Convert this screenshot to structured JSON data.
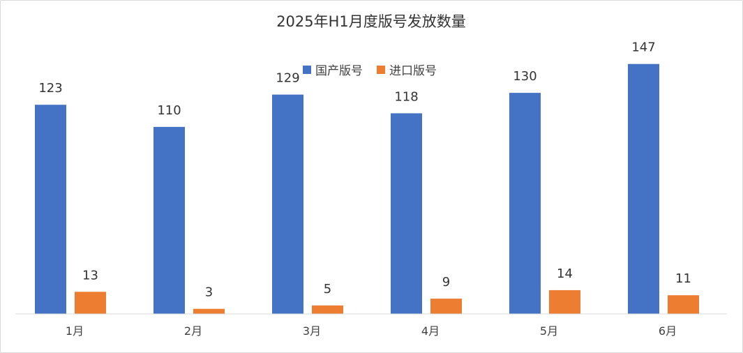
{
  "chart_data": {
    "type": "bar",
    "title": "2025年H1月度版号发放数量",
    "categories": [
      "1月",
      "2月",
      "3月",
      "4月",
      "5月",
      "6月"
    ],
    "series": [
      {
        "name": "国产版号",
        "color": "#4472C4",
        "values": [
          123,
          110,
          129,
          118,
          130,
          147
        ]
      },
      {
        "name": "进口版号",
        "color": "#ED7D31",
        "values": [
          13,
          3,
          5,
          9,
          14,
          11
        ]
      }
    ],
    "ylim": [
      0,
      160
    ],
    "legend": "top-center",
    "grid": false,
    "data_labels": true
  }
}
